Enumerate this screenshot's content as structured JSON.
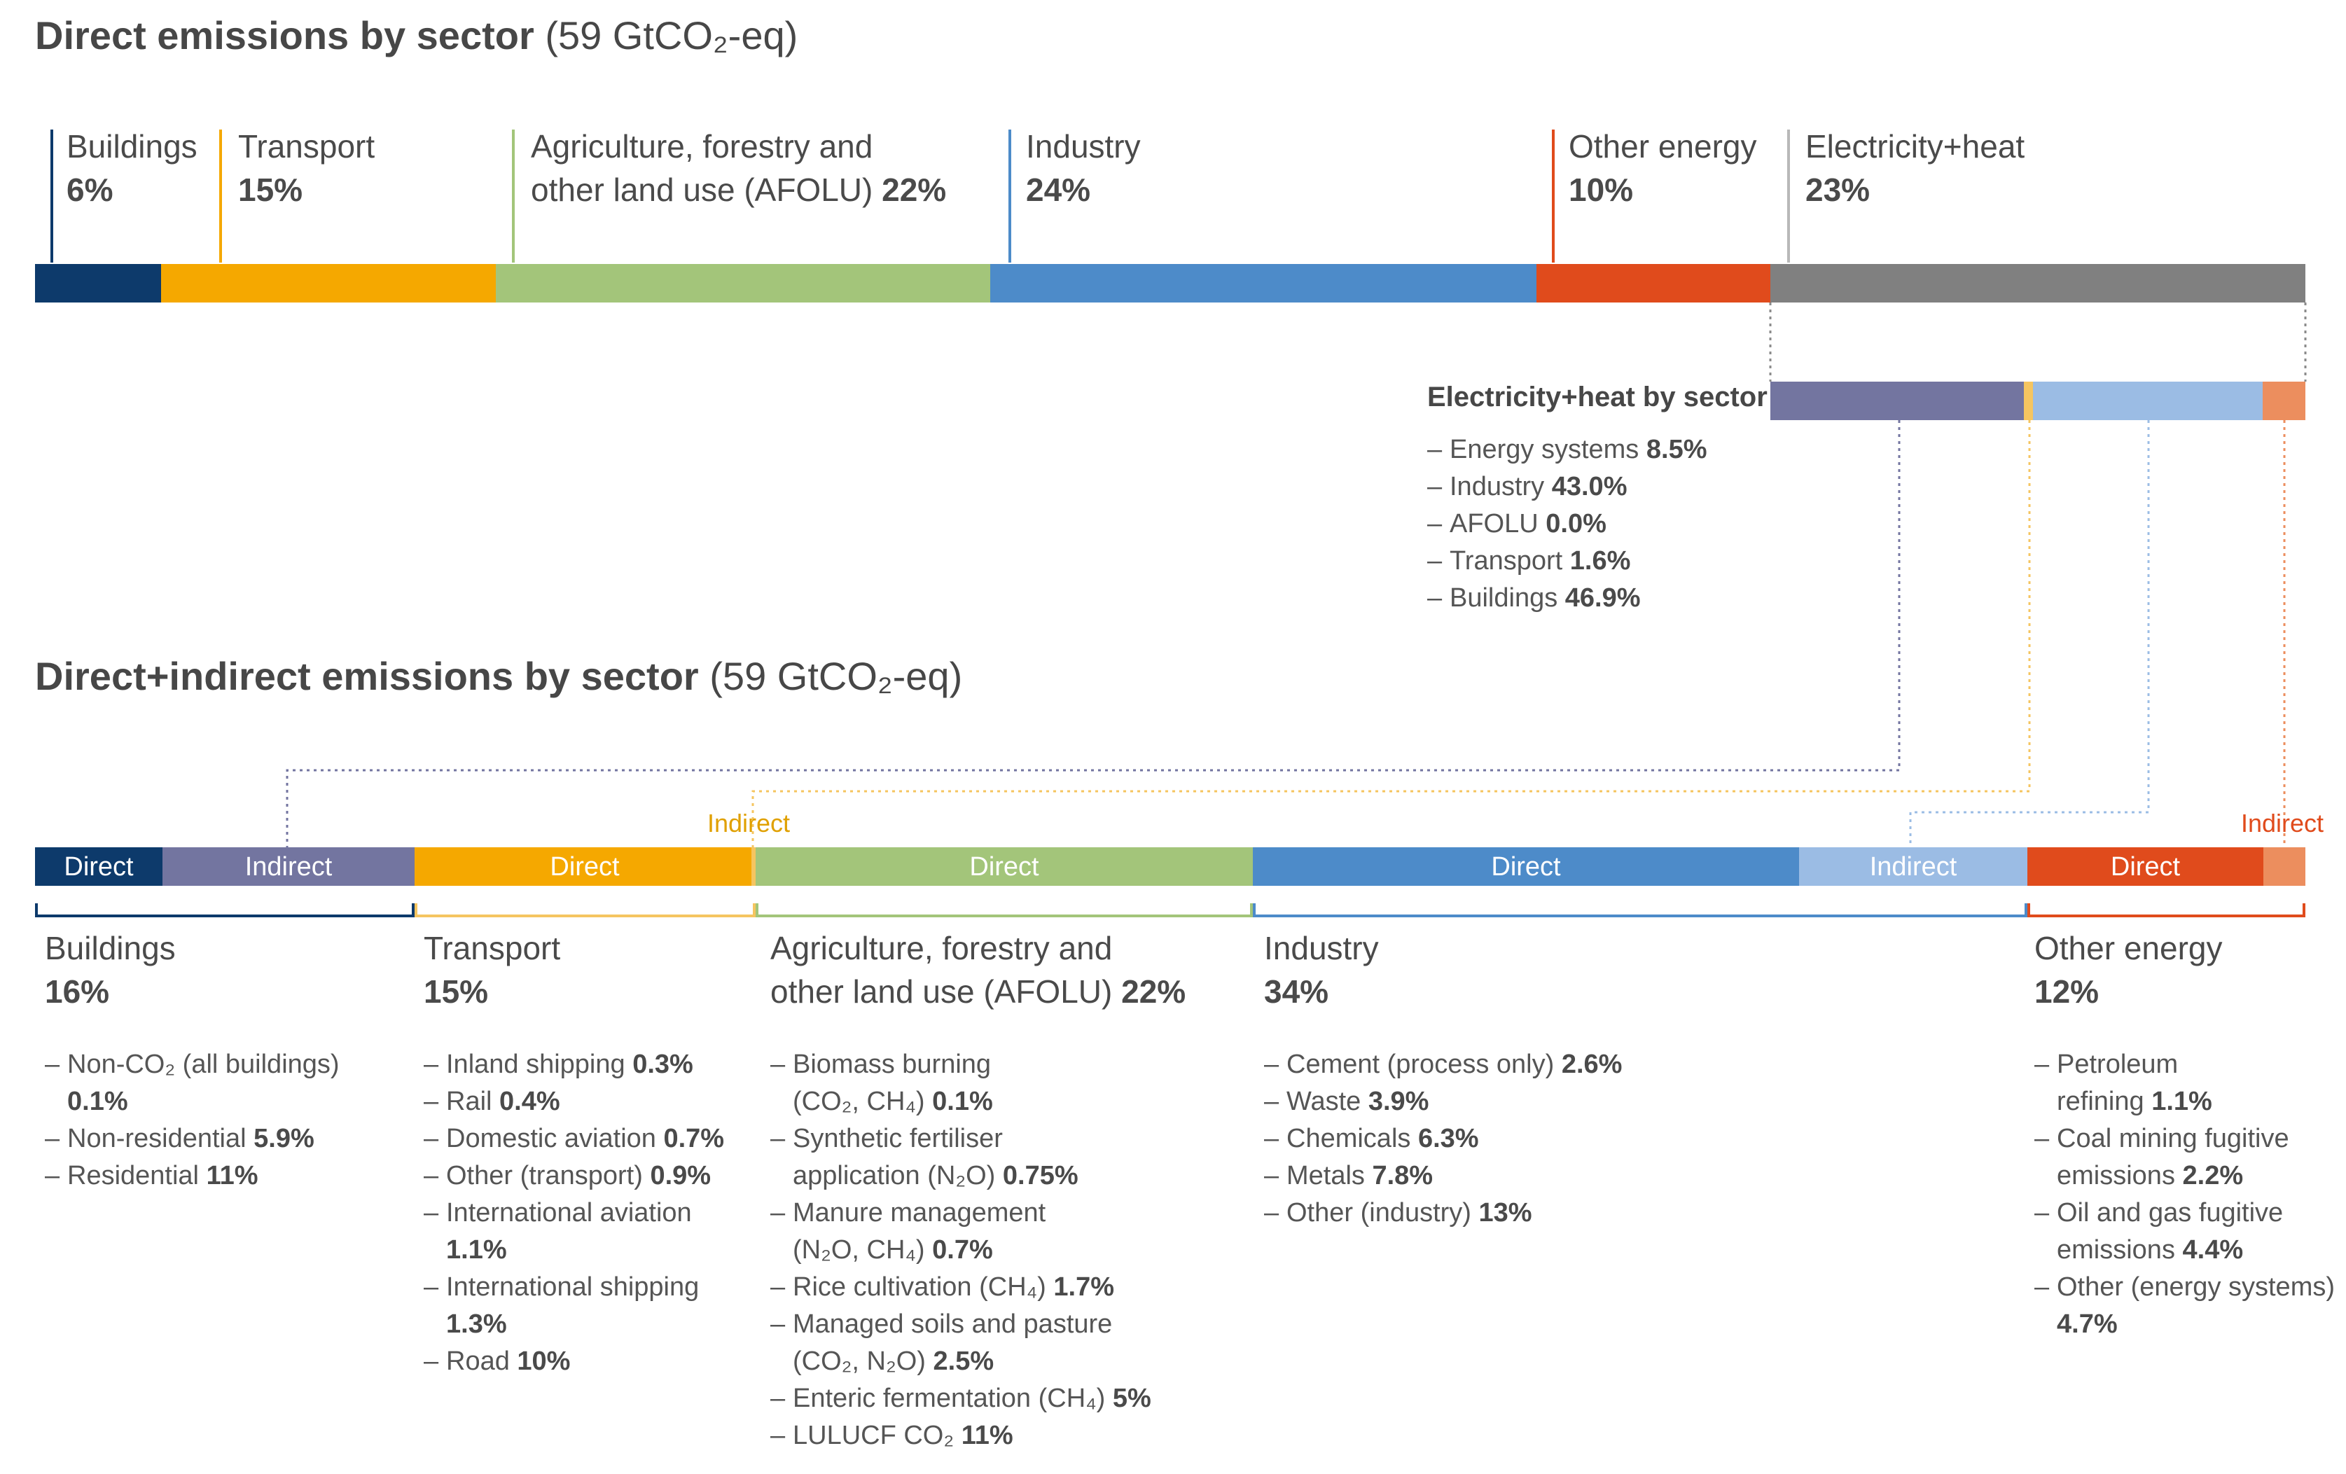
{
  "direct_title": {
    "bold": "Direct emissions by sector",
    "rest": "(59 GtCO₂-eq)"
  },
  "combined_title": {
    "bold": "Direct+indirect emissions by sector",
    "rest": "(59 GtCO₂-eq)"
  },
  "colors": {
    "buildings": "#0d3a6b",
    "transport": "#f5a800",
    "afolu": "#a3c57a",
    "industry": "#4d8bc9",
    "other_energy": "#e04b1c",
    "electricity": "#808080",
    "buildings_indirect": "#7375a0",
    "industry_indirect": "#9bbce4",
    "other_energy_indirect": "#ec8e5e"
  },
  "direct_labels": [
    {
      "name": "Buildings",
      "pct": "6%"
    },
    {
      "name": "Transport",
      "pct": "15%"
    },
    {
      "name": "Agriculture, forestry and",
      "name2": "other land use (AFOLU)",
      "pct": "22%"
    },
    {
      "name": "Industry",
      "pct": "24%"
    },
    {
      "name": "Other energy",
      "pct": "10%"
    },
    {
      "name": "Electricity+heat",
      "pct": "23%"
    }
  ],
  "eh": {
    "title": "Electricity+heat by sector",
    "items": [
      {
        "label": "Energy systems",
        "value": "8.5%"
      },
      {
        "label": "Industry",
        "value": "43.0%"
      },
      {
        "label": "AFOLU",
        "value": "0.0%"
      },
      {
        "label": "Transport",
        "value": "1.6%"
      },
      {
        "label": "Buildings",
        "value": "46.9%"
      }
    ]
  },
  "segment_text": {
    "direct": "Direct",
    "indirect": "Indirect"
  },
  "combined": {
    "buildings": {
      "name": "Buildings",
      "pct": "16%",
      "items": [
        {
          "label": "Non-CO₂ (all buildings)",
          "value": "0.1%"
        },
        {
          "label": "Non-residential",
          "value": "5.9%"
        },
        {
          "label": "Residential",
          "value": "11%"
        }
      ]
    },
    "transport": {
      "name": "Transport",
      "pct": "15%",
      "items": [
        {
          "label": "Inland shipping",
          "value": "0.3%"
        },
        {
          "label": "Rail",
          "value": "0.4%"
        },
        {
          "label": "Domestic aviation",
          "value": "0.7%"
        },
        {
          "label": "Other (transport)",
          "value": "0.9%"
        },
        {
          "label": "International aviation",
          "value": "1.1%"
        },
        {
          "label": "International shipping",
          "value": "1.3%"
        },
        {
          "label": "Road",
          "value": "10%"
        }
      ]
    },
    "afolu": {
      "name": "Agriculture, forestry and",
      "name2": "other land use (AFOLU)",
      "pct": "22%",
      "items": [
        {
          "label": "Biomass burning",
          "label2": "(CO₂, CH₄)",
          "value": "0.1%"
        },
        {
          "label": "Synthetic fertiliser",
          "label2": "application (N₂O)",
          "value": "0.75%"
        },
        {
          "label": "Manure management",
          "label2": "(N₂O, CH₄)",
          "value": "0.7%"
        },
        {
          "label": "Rice cultivation (CH₄)",
          "value": "1.7%"
        },
        {
          "label": "Managed soils and pasture",
          "label2": "(CO₂, N₂O)",
          "value": "2.5%"
        },
        {
          "label": "Enteric fermentation (CH₄)",
          "value": "5%"
        },
        {
          "label": "LULUCF CO₂",
          "value": "11%"
        }
      ]
    },
    "industry": {
      "name": "Industry",
      "pct": "34%",
      "items": [
        {
          "label": "Cement (process only)",
          "value": "2.6%"
        },
        {
          "label": "Waste",
          "value": "3.9%"
        },
        {
          "label": "Chemicals",
          "value": "6.3%"
        },
        {
          "label": "Metals",
          "value": "7.8%"
        },
        {
          "label": "Other (industry)",
          "value": "13%"
        }
      ]
    },
    "other_energy": {
      "name": "Other energy",
      "pct": "12%",
      "items": [
        {
          "label": "Petroleum",
          "label2": "refining",
          "value": "1.1%"
        },
        {
          "label": "Coal mining fugitive",
          "label2": "emissions",
          "value": "2.2%"
        },
        {
          "label": "Oil and gas fugitive",
          "label2": "emissions",
          "value": "4.4%"
        },
        {
          "label": "Other (energy systems)",
          "value": "4.7%"
        }
      ]
    }
  },
  "chart_data": [
    {
      "type": "bar",
      "title": "Direct emissions by sector (59 GtCO₂-eq)",
      "orientation": "horizontal-stacked-100",
      "categories": [
        "Buildings",
        "Transport",
        "AFOLU",
        "Industry",
        "Other energy",
        "Electricity+heat"
      ],
      "values": [
        6,
        15,
        22,
        24,
        10,
        23
      ]
    },
    {
      "type": "bar",
      "title": "Electricity+heat by sector",
      "orientation": "horizontal-stacked-100",
      "categories": [
        "Buildings",
        "Transport",
        "AFOLU",
        "Industry",
        "Energy systems"
      ],
      "values": [
        46.9,
        1.6,
        0.0,
        43.0,
        8.5
      ]
    },
    {
      "type": "bar",
      "title": "Direct+indirect emissions by sector (59 GtCO₂-eq)",
      "orientation": "horizontal-stacked-100",
      "categories": [
        "Buildings",
        "Transport",
        "AFOLU",
        "Industry",
        "Other energy"
      ],
      "series": [
        {
          "name": "Direct",
          "values": [
            6,
            15,
            22,
            24,
            10
          ]
        },
        {
          "name": "Indirect",
          "values": [
            10,
            0,
            0,
            10,
            2
          ]
        }
      ],
      "totals": [
        16,
        15,
        22,
        34,
        12
      ]
    }
  ]
}
